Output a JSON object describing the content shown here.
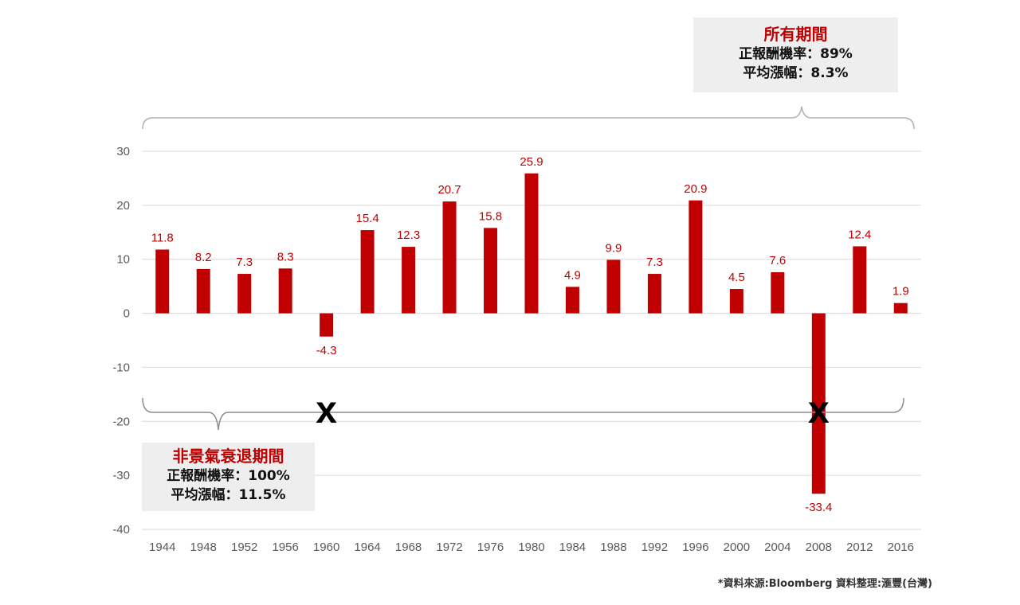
{
  "chart_data": {
    "type": "bar",
    "categories": [
      "1944",
      "1948",
      "1952",
      "1956",
      "1960",
      "1964",
      "1968",
      "1972",
      "1976",
      "1980",
      "1984",
      "1988",
      "1992",
      "1996",
      "2000",
      "2004",
      "2008",
      "2012",
      "2016"
    ],
    "values": [
      11.8,
      8.2,
      7.3,
      8.3,
      -4.3,
      15.4,
      12.3,
      20.7,
      15.8,
      25.9,
      4.9,
      9.9,
      7.3,
      20.9,
      4.5,
      7.6,
      -33.4,
      12.4,
      1.9
    ],
    "value_labels": [
      "11.8",
      "8.2",
      "7.3",
      "8.3",
      "-4.3",
      "15.4",
      "12.3",
      "20.7",
      "15.8",
      "25.9",
      "4.9",
      "9.9",
      "7.3",
      "20.9",
      "4.5",
      "7.6",
      "-33.4",
      "12.4",
      "1.9"
    ],
    "y_ticks": [
      "30",
      "20",
      "10",
      "0",
      "-10",
      "-20",
      "-30",
      "-40"
    ],
    "y_tick_values": [
      30,
      20,
      10,
      0,
      -10,
      -20,
      -30,
      -40
    ],
    "ylim": [
      -40,
      30
    ],
    "grid": true,
    "bar_color": "#c00000",
    "label_color": "#c00000",
    "excluded_marker": "x",
    "excluded_years": [
      "1960",
      "2008"
    ]
  },
  "callouts": {
    "all_periods": {
      "title": "所有期間",
      "line1": "正報酬機率：89%",
      "line2": "平均漲幅：8.3%"
    },
    "non_recession": {
      "title": "非景氣衰退期間",
      "line1": "正報酬機率：100%",
      "line2": "平均漲幅：11.5%"
    }
  },
  "source": "*資料來源:Bloomberg 資料整理:滙豐(台灣)"
}
